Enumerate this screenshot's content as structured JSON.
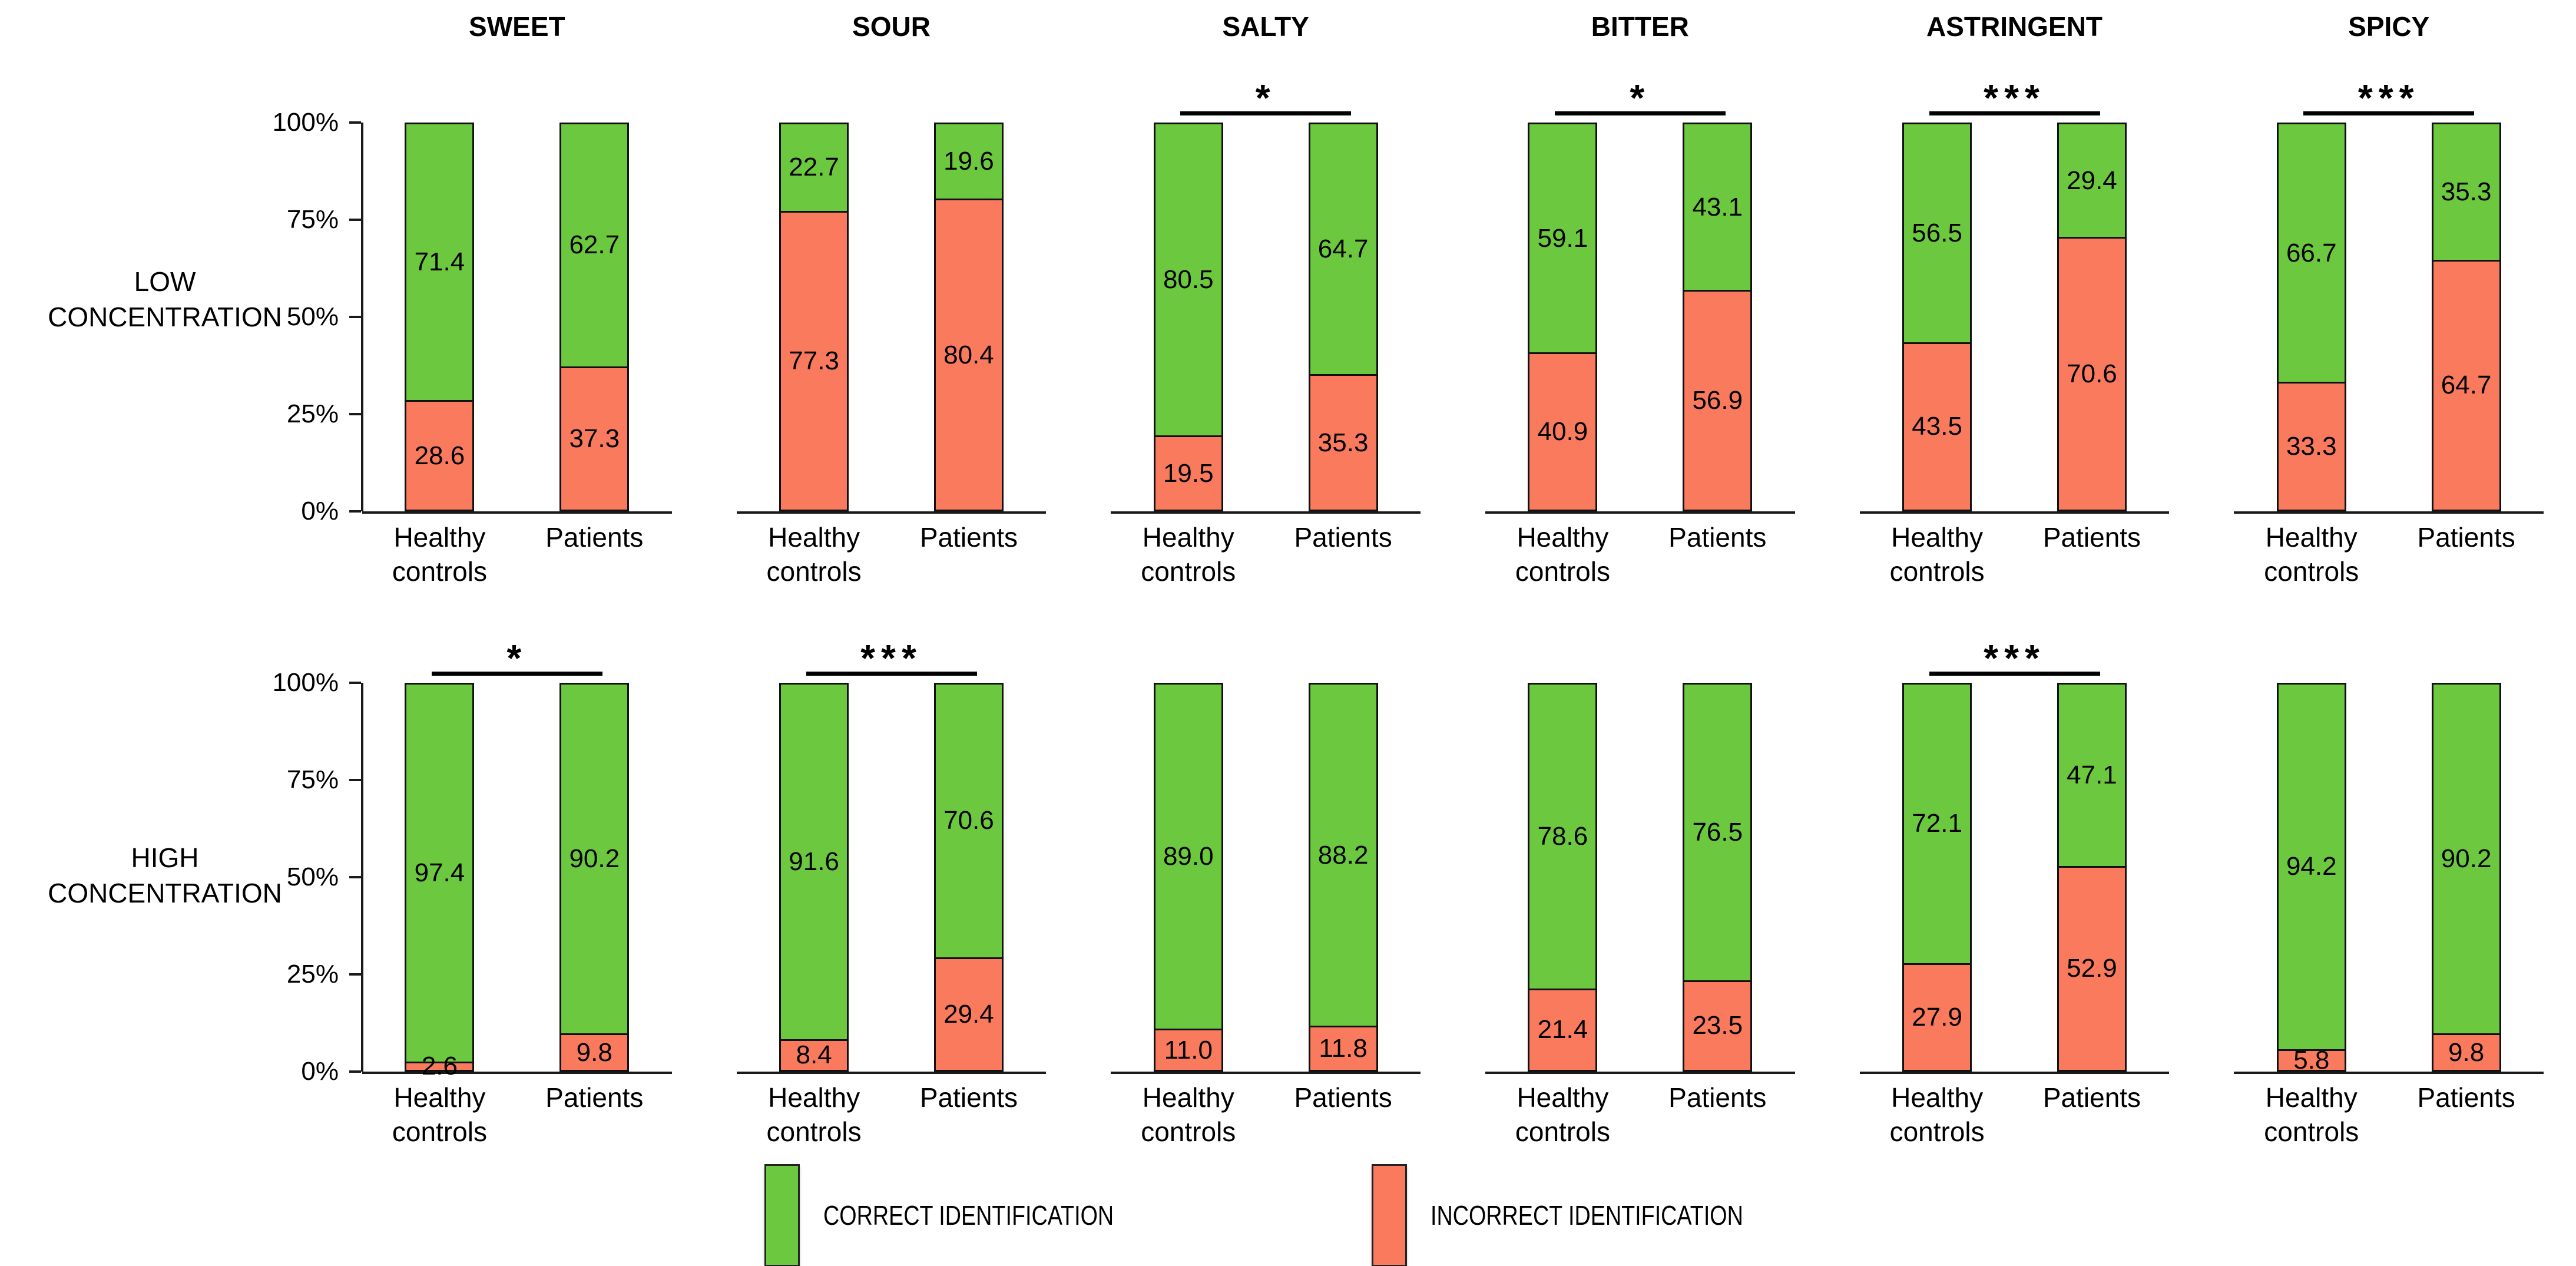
{
  "chart_data": {
    "type": "bar",
    "stacked": true,
    "unit": "%",
    "grid": false,
    "y_axis": {
      "range": [
        0,
        100
      ],
      "tick_labels": [
        "100%",
        "75%",
        "50%",
        "25%",
        "0%"
      ]
    },
    "categories": [
      "Healthy controls",
      "Patients"
    ],
    "series_names": [
      "CORRECT IDENTIFICATION",
      "INCORRECT IDENTIFICATION"
    ],
    "colors": {
      "correct": "#6cc83e",
      "incorrect": "#fa7a5e",
      "axis": "#1a1a1a"
    },
    "rows": [
      {
        "label": "LOW CONCENTRATION",
        "charts": [
          {
            "title": "SWEET",
            "significance": null,
            "correct": [
              71.4,
              62.7
            ],
            "incorrect": [
              28.6,
              37.3
            ]
          },
          {
            "title": "SOUR",
            "significance": null,
            "correct": [
              22.7,
              19.6
            ],
            "incorrect": [
              77.3,
              80.4
            ]
          },
          {
            "title": "SALTY",
            "significance": "*",
            "correct": [
              80.5,
              64.7
            ],
            "incorrect": [
              19.5,
              35.3
            ]
          },
          {
            "title": "BITTER",
            "significance": "*",
            "correct": [
              59.1,
              43.1
            ],
            "incorrect": [
              40.9,
              56.9
            ]
          },
          {
            "title": "ASTRINGENT",
            "significance": "***",
            "correct": [
              56.5,
              29.4
            ],
            "incorrect": [
              43.5,
              70.6
            ]
          },
          {
            "title": "SPICY",
            "significance": "***",
            "correct": [
              66.7,
              35.3
            ],
            "incorrect": [
              33.3,
              64.7
            ]
          }
        ]
      },
      {
        "label": "HIGH CONCENTRATION",
        "charts": [
          {
            "title": "",
            "significance": "*",
            "correct": [
              97.4,
              90.2
            ],
            "incorrect": [
              2.6,
              9.8
            ]
          },
          {
            "title": "",
            "significance": "***",
            "correct": [
              91.6,
              70.6
            ],
            "incorrect": [
              8.4,
              29.4
            ]
          },
          {
            "title": "",
            "significance": null,
            "correct": [
              89.0,
              88.2
            ],
            "incorrect": [
              11.0,
              11.8
            ]
          },
          {
            "title": "",
            "significance": null,
            "correct": [
              78.6,
              76.5
            ],
            "incorrect": [
              21.4,
              23.5
            ]
          },
          {
            "title": "",
            "significance": "***",
            "correct": [
              72.1,
              47.1
            ],
            "incorrect": [
              27.9,
              52.9
            ]
          },
          {
            "title": "",
            "significance": null,
            "correct": [
              94.2,
              90.2
            ],
            "incorrect": [
              5.8,
              9.8
            ]
          }
        ]
      }
    ],
    "legend": [
      {
        "label": "CORRECT IDENTIFICATION",
        "color": "#6cc83e"
      },
      {
        "label": "INCORRECT IDENTIFICATION",
        "color": "#fa7a5e"
      }
    ]
  }
}
